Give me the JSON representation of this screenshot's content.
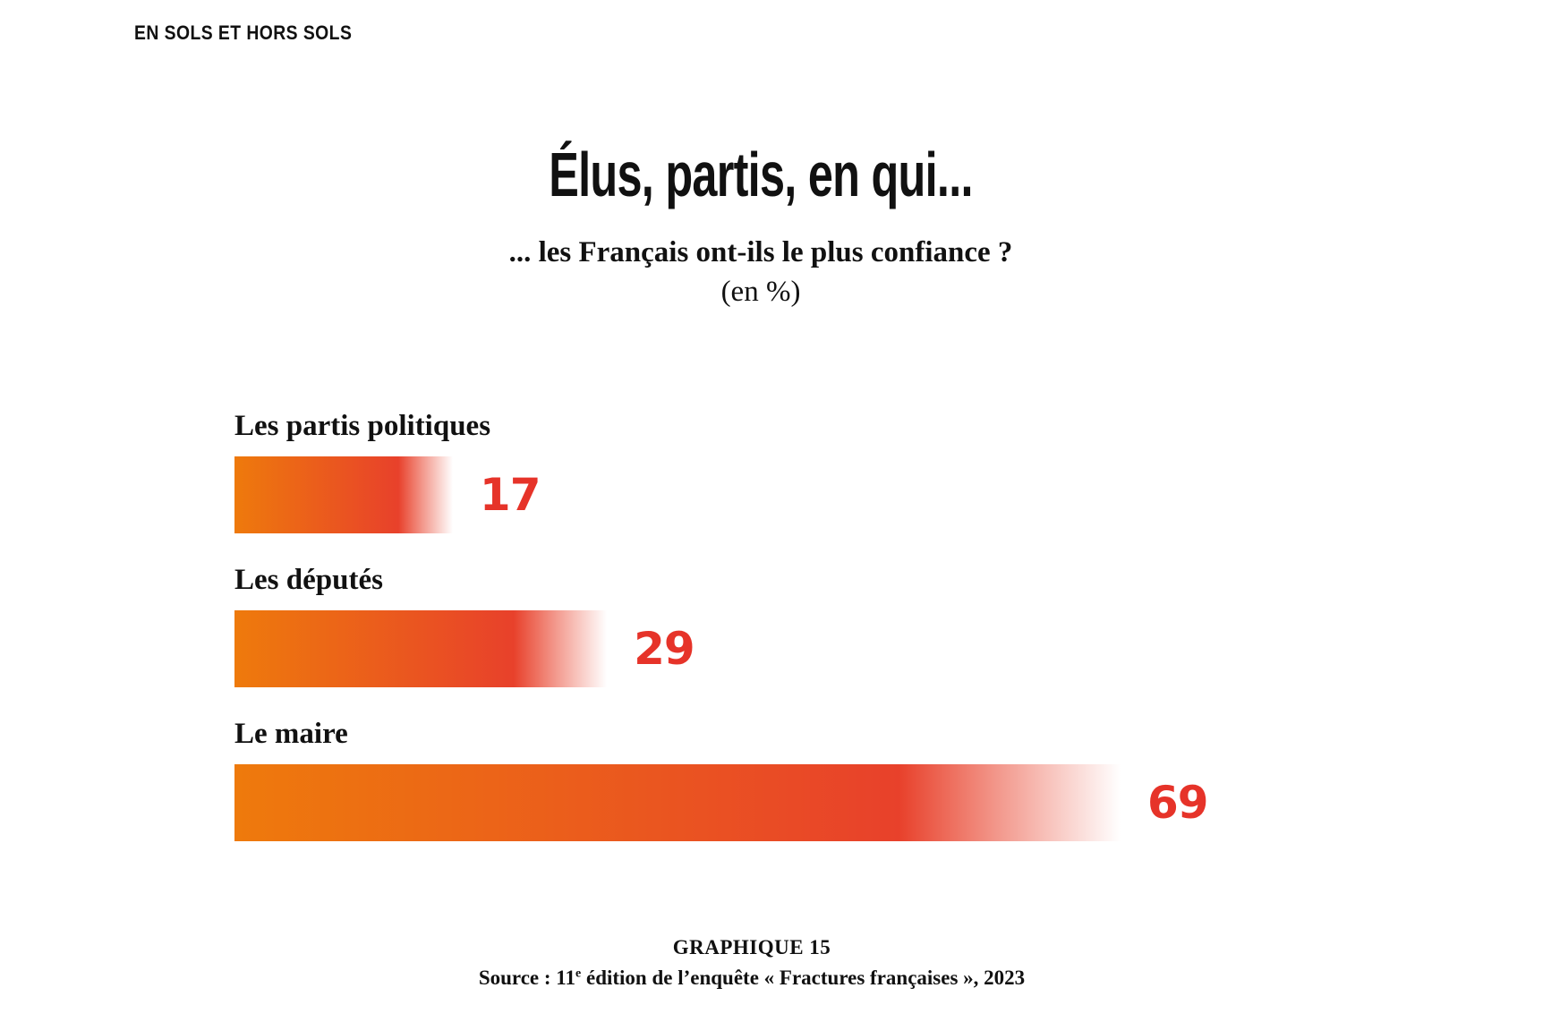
{
  "header": {
    "section_tag": "EN SOLS ET HORS SOLS"
  },
  "chart_data": {
    "type": "bar",
    "orientation": "horizontal",
    "title": "Élus, partis, en qui...",
    "subtitle": "... les Français ont-ils le plus confiance ?",
    "unit": "(en %)",
    "categories": [
      "Les partis politiques",
      "Les députés",
      "Le maire"
    ],
    "values": [
      17,
      29,
      69
    ],
    "xlim": [
      0,
      69
    ],
    "grid": false,
    "legend": "none",
    "colors": {
      "gradient_start": "#ee7a0c",
      "gradient_end": "#e8412b",
      "value_label": "#e63329"
    }
  },
  "footer": {
    "graph_number": "GRAPHIQUE 15",
    "source_prefix": "Source : 11",
    "source_sup": "e",
    "source_suffix": " édition de l’enquête « Fractures françaises », 2023"
  }
}
